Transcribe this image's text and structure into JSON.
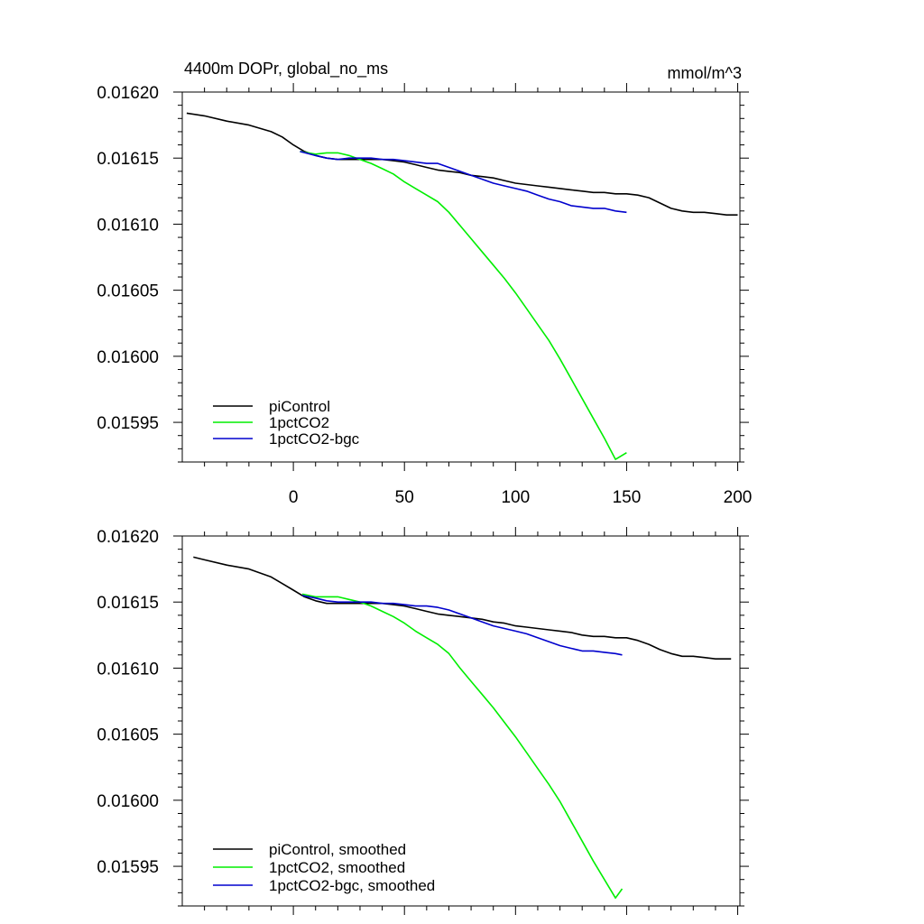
{
  "figure": {
    "title_left": "4400m DOPr, global_no_ms",
    "title_right": "mmol/m^3"
  },
  "chart_data": [
    {
      "type": "line",
      "xlim": [
        -50,
        201
      ],
      "ylim": [
        0.01592,
        0.0162
      ],
      "xticks": [
        0,
        50,
        100,
        150,
        200
      ],
      "xtick_labels": [
        "0",
        "50",
        "100",
        "150",
        "200"
      ],
      "show_xtick_labels": true,
      "yticks": [
        0.0162,
        0.01615,
        0.0161,
        0.01605,
        0.016,
        0.01595
      ],
      "ytick_labels": [
        "0.01620",
        "0.01615",
        "0.01610",
        "0.01605",
        "0.01600",
        "0.01595"
      ],
      "grid": false,
      "legend_position": "bottom-left",
      "series": [
        {
          "name": "piControl",
          "color": "#000000",
          "x": [
            -48,
            -40,
            -30,
            -20,
            -10,
            -5,
            0,
            5,
            10,
            15,
            20,
            25,
            30,
            35,
            40,
            45,
            50,
            55,
            60,
            65,
            70,
            75,
            80,
            85,
            90,
            95,
            100,
            105,
            110,
            115,
            120,
            125,
            130,
            135,
            140,
            145,
            150,
            155,
            160,
            165,
            170,
            175,
            180,
            185,
            190,
            195,
            200
          ],
          "y": [
            0.016184,
            0.016182,
            0.016178,
            0.016175,
            0.01617,
            0.016166,
            0.01616,
            0.016155,
            0.016152,
            0.01615,
            0.016149,
            0.016149,
            0.016149,
            0.016149,
            0.016149,
            0.016148,
            0.016147,
            0.016145,
            0.016143,
            0.016141,
            0.01614,
            0.016139,
            0.016137,
            0.016136,
            0.016135,
            0.016133,
            0.016131,
            0.01613,
            0.016129,
            0.016128,
            0.016127,
            0.016126,
            0.016125,
            0.016124,
            0.016124,
            0.016123,
            0.016123,
            0.016122,
            0.01612,
            0.016116,
            0.016112,
            0.01611,
            0.016109,
            0.016109,
            0.016108,
            0.016107,
            0.016107
          ]
        },
        {
          "name": "1pctCO2",
          "color": "#00ee00",
          "x": [
            3,
            10,
            15,
            20,
            25,
            30,
            35,
            40,
            45,
            50,
            55,
            60,
            65,
            70,
            75,
            80,
            85,
            90,
            95,
            100,
            105,
            110,
            115,
            120,
            125,
            130,
            135,
            140,
            145,
            150
          ],
          "y": [
            0.016155,
            0.016153,
            0.016154,
            0.016154,
            0.016152,
            0.016149,
            0.016146,
            0.016142,
            0.016138,
            0.016132,
            0.016127,
            0.016122,
            0.016117,
            0.016109,
            0.016099,
            0.016089,
            0.016079,
            0.016069,
            0.016059,
            0.016048,
            0.016036,
            0.016024,
            0.016012,
            0.015998,
            0.015983,
            0.015968,
            0.015953,
            0.015938,
            0.015922,
            0.015927
          ]
        },
        {
          "name": "1pctCO2-bgc",
          "color": "#0000cd",
          "x": [
            3,
            10,
            15,
            20,
            25,
            30,
            35,
            40,
            45,
            50,
            55,
            60,
            65,
            70,
            75,
            80,
            85,
            90,
            95,
            100,
            105,
            110,
            115,
            120,
            125,
            130,
            135,
            140,
            145,
            150
          ],
          "y": [
            0.016155,
            0.016152,
            0.01615,
            0.016149,
            0.01615,
            0.01615,
            0.01615,
            0.016149,
            0.016149,
            0.016148,
            0.016147,
            0.016146,
            0.016146,
            0.016143,
            0.01614,
            0.016137,
            0.016134,
            0.016131,
            0.016129,
            0.016127,
            0.016125,
            0.016122,
            0.016119,
            0.016117,
            0.016114,
            0.016113,
            0.016112,
            0.016112,
            0.01611,
            0.016109
          ]
        }
      ]
    },
    {
      "type": "line",
      "xlim": [
        -50,
        201
      ],
      "ylim": [
        0.01592,
        0.0162
      ],
      "xticks": [
        0,
        50,
        100,
        150,
        200
      ],
      "xtick_labels": [],
      "show_xtick_labels": false,
      "yticks": [
        0.0162,
        0.01615,
        0.0161,
        0.01605,
        0.016,
        0.01595
      ],
      "ytick_labels": [
        "0.01620",
        "0.01615",
        "0.01610",
        "0.01605",
        "0.01600",
        "0.01595"
      ],
      "grid": false,
      "legend_position": "bottom-left",
      "series": [
        {
          "name": "piControl, smoothed",
          "color": "#000000",
          "x": [
            -45,
            -40,
            -30,
            -20,
            -10,
            -5,
            0,
            5,
            10,
            15,
            20,
            25,
            30,
            35,
            40,
            45,
            50,
            55,
            60,
            65,
            70,
            75,
            80,
            85,
            90,
            95,
            100,
            105,
            110,
            115,
            120,
            125,
            130,
            135,
            140,
            145,
            150,
            155,
            160,
            165,
            170,
            175,
            180,
            185,
            190,
            197
          ],
          "y": [
            0.016184,
            0.016182,
            0.016178,
            0.016175,
            0.016169,
            0.016164,
            0.016159,
            0.016154,
            0.016151,
            0.016149,
            0.016149,
            0.016149,
            0.016149,
            0.016149,
            0.016149,
            0.016148,
            0.016147,
            0.016145,
            0.016143,
            0.016141,
            0.01614,
            0.016139,
            0.016138,
            0.016137,
            0.016135,
            0.016134,
            0.016132,
            0.016131,
            0.01613,
            0.016129,
            0.016128,
            0.016127,
            0.016125,
            0.016124,
            0.016124,
            0.016123,
            0.016123,
            0.016121,
            0.016118,
            0.016114,
            0.016111,
            0.016109,
            0.016109,
            0.016108,
            0.016107,
            0.016107
          ]
        },
        {
          "name": "1pctCO2, smoothed",
          "color": "#00ee00",
          "x": [
            4,
            10,
            15,
            20,
            25,
            30,
            35,
            40,
            45,
            50,
            55,
            60,
            65,
            70,
            75,
            80,
            85,
            90,
            95,
            100,
            105,
            110,
            115,
            120,
            125,
            130,
            135,
            140,
            145,
            148
          ],
          "y": [
            0.016156,
            0.016154,
            0.016154,
            0.016154,
            0.016152,
            0.01615,
            0.016147,
            0.016143,
            0.016139,
            0.016134,
            0.016128,
            0.016123,
            0.016118,
            0.016111,
            0.0161,
            0.01609,
            0.01608,
            0.01607,
            0.016059,
            0.016048,
            0.016036,
            0.016024,
            0.016012,
            0.015999,
            0.015984,
            0.015969,
            0.015954,
            0.01594,
            0.015926,
            0.015933
          ]
        },
        {
          "name": "1pctCO2-bgc, smoothed",
          "color": "#0000cd",
          "x": [
            4,
            10,
            15,
            20,
            25,
            30,
            35,
            40,
            45,
            50,
            55,
            60,
            65,
            70,
            75,
            80,
            85,
            90,
            95,
            100,
            105,
            110,
            115,
            120,
            125,
            130,
            135,
            140,
            145,
            148
          ],
          "y": [
            0.016155,
            0.016153,
            0.016151,
            0.01615,
            0.01615,
            0.01615,
            0.01615,
            0.016149,
            0.016149,
            0.016148,
            0.016147,
            0.016147,
            0.016146,
            0.016144,
            0.016141,
            0.016138,
            0.016135,
            0.016132,
            0.01613,
            0.016128,
            0.016126,
            0.016123,
            0.01612,
            0.016117,
            0.016115,
            0.016113,
            0.016113,
            0.016112,
            0.016111,
            0.01611
          ]
        }
      ]
    }
  ]
}
